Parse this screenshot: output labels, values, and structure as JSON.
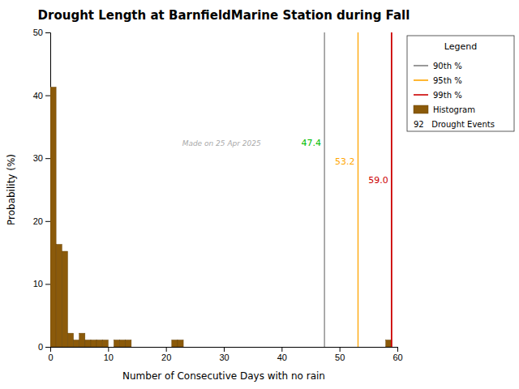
{
  "chart_data": {
    "type": "histogram",
    "title": "Drought Length at BarnfieldMarine Station during Fall",
    "x_label": "Number of Consecutive Days with no rain",
    "y_label": "Probability (%)",
    "name": "Histogram",
    "color": "#8B5A0A",
    "bins": [
      0,
      1,
      2,
      3,
      4,
      5,
      6,
      7,
      8,
      9,
      10,
      11,
      12,
      13,
      14,
      15,
      16,
      17,
      18,
      19,
      20,
      21,
      22,
      23,
      24,
      25,
      26,
      27,
      28,
      29,
      30,
      31,
      32,
      33,
      34,
      35,
      36,
      37,
      38,
      39,
      40,
      41,
      42,
      43,
      44,
      45,
      46,
      47,
      48,
      49,
      50,
      51,
      52,
      53,
      54,
      55,
      56,
      57,
      58,
      59,
      60
    ],
    "values": [
      41.3,
      16.3,
      15.2,
      2.17,
      1.09,
      2.17,
      1.09,
      1.09,
      1.09,
      1.09,
      0.0,
      1.09,
      1.09,
      1.09,
      0.0,
      0.0,
      0.0,
      0.0,
      0.0,
      0.0,
      0.0,
      1.09,
      1.09,
      0.0,
      0.0,
      0.0,
      0.0,
      0.0,
      0.0,
      0.0,
      0.0,
      0.0,
      0.0,
      0.0,
      0.0,
      0.0,
      0.0,
      0.0,
      0.0,
      0.0,
      0.0,
      0.0,
      0.0,
      0.0,
      0.0,
      0.0,
      0.0,
      0.0,
      0.0,
      0.0,
      0.0,
      0.0,
      0.0,
      0.0,
      0.0,
      0.0,
      0.0,
      0.0,
      1.09,
      0.0
    ],
    "xlim": [
      0,
      60
    ],
    "ylim": [
      0,
      50
    ],
    "xticks": [
      0,
      10,
      20,
      30,
      40,
      50,
      60
    ],
    "yticks": [
      0,
      10,
      20,
      30,
      40,
      50
    ],
    "grid": false,
    "legend": "right",
    "legend_title": "Legend",
    "percentiles": [
      {
        "name": "90th %",
        "value": 47.4,
        "label": "47.4",
        "color": "#808080",
        "label_color": "#00BB00"
      },
      {
        "name": "95th %",
        "value": 53.2,
        "label": "53.2",
        "color": "#FFA500",
        "label_color": "#FFA500"
      },
      {
        "name": "99th %",
        "value": 59.0,
        "label": "59.0",
        "color": "#CC0000",
        "label_color": "#CC0000"
      }
    ],
    "n_events": {
      "value": 92,
      "label": "92   Drought Events"
    },
    "watermark": {
      "text": "Made on 25 Apr 2025",
      "color": "#AAAAAA"
    }
  }
}
